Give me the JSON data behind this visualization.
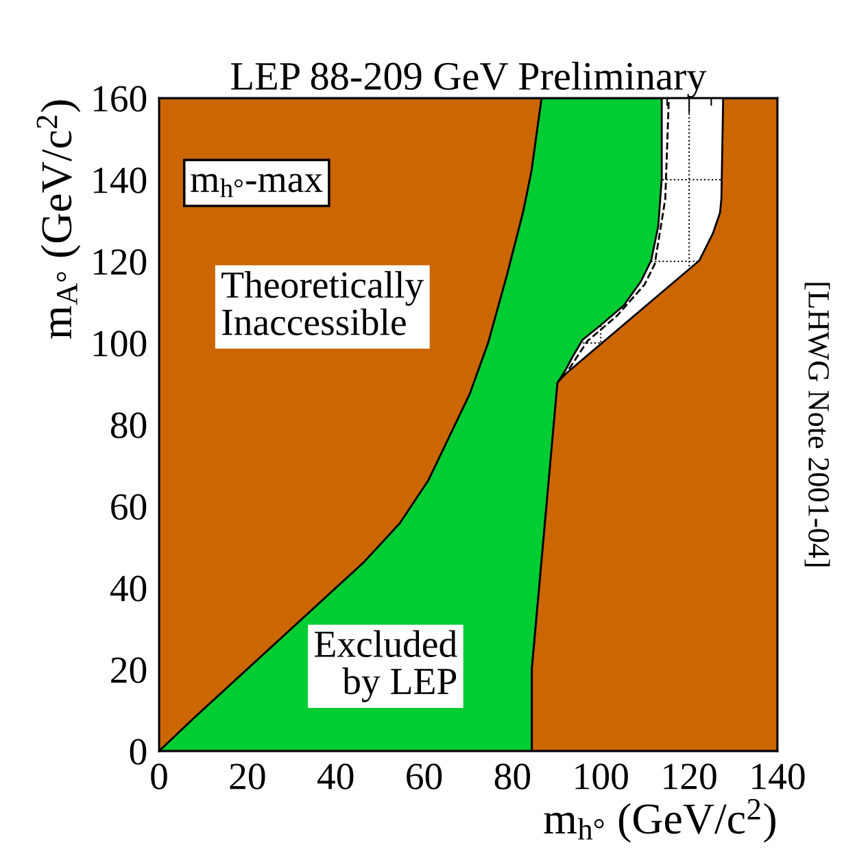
{
  "chart_data": {
    "type": "area",
    "title": "LEP 88-209 GeV Preliminary",
    "xlabel": "m$_{h°}$ (GeV/c$^{2}$)",
    "ylabel": "m$_{A°}$ (GeV/c$^{2}$)",
    "xlim": [
      0,
      140
    ],
    "ylim": [
      0,
      160
    ],
    "xticks": [
      0,
      20,
      40,
      60,
      80,
      100,
      120,
      140
    ],
    "yticks": [
      0,
      20,
      40,
      60,
      80,
      100,
      120,
      140,
      160
    ],
    "grid": true,
    "series": [
      {
        "color": "#cc6600",
        "x": [
          0,
          8.2,
          46.3,
          54.5,
          61,
          70.3,
          74.5,
          78.8,
          82.4,
          84.3,
          86.6,
          0
        ],
        "values": [
          0,
          8.4,
          46.2,
          55.8,
          66.4,
          87.4,
          100,
          116.8,
          132,
          142,
          160,
          160
        ]
      },
      {
        "color": "#00cc33",
        "x": [
          0,
          8.2,
          46.3,
          54.5,
          61,
          70.3,
          74.5,
          78.8,
          82.4,
          84.3,
          86.6,
          113.8,
          113.8,
          113,
          111.4,
          109.1,
          105.2,
          99.8,
          95.9,
          93.6,
          92,
          90.2,
          84.4,
          84.4
        ],
        "values": [
          0,
          8.4,
          46.2,
          55.8,
          66.4,
          87.4,
          100,
          116.8,
          132,
          142,
          160,
          160,
          140.3,
          128.6,
          120.2,
          115.1,
          109.2,
          104.2,
          100.8,
          96.6,
          93.3,
          90.3,
          20.2,
          0
        ]
      },
      {
        "color": "#cc6600",
        "x": [
          84.4,
          140,
          140,
          127.7,
          127.3,
          127,
          125.4,
          122.3,
          92,
          90.2,
          84.4
        ],
        "values": [
          0,
          0,
          160,
          160,
          135.3,
          132,
          126.9,
          120.2,
          92.4,
          90.3,
          20.2
        ]
      },
      {
        "type": "line",
        "line_style": "dashed",
        "color": "#000000",
        "x": [
          92.8,
          97,
          103.7,
          109.9,
          112.2,
          114.6,
          115.4
        ],
        "values": [
          93.6,
          100.5,
          106.7,
          114.3,
          119.3,
          135.3,
          160
        ]
      }
    ],
    "annotations": [
      "m$_{h°}$-max",
      "Theoretically\nInaccessible",
      "Excluded\n   by LEP",
      "[LHWG Note 2001-04]"
    ]
  }
}
